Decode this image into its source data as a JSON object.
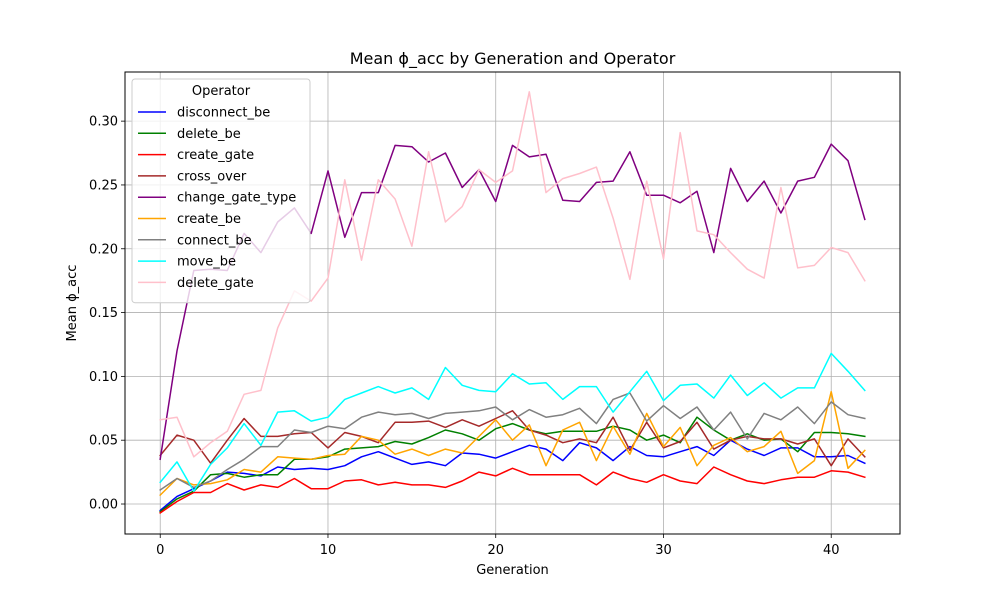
{
  "chart_data": {
    "type": "line",
    "title": "Mean ϕ_acc by Generation and Operator",
    "xlabel": "Generation",
    "ylabel": "Mean ϕ_acc",
    "xlim": [
      -2.1,
      44.1
    ],
    "ylim": [
      -0.0235,
      0.3385
    ],
    "xticks": [
      0,
      10,
      20,
      30,
      40
    ],
    "xtick_labels": [
      "0",
      "10",
      "20",
      "30",
      "40"
    ],
    "yticks": [
      0.0,
      0.05,
      0.1,
      0.15,
      0.2,
      0.25,
      0.3
    ],
    "ytick_labels": [
      "0.00",
      "0.05",
      "0.10",
      "0.15",
      "0.20",
      "0.25",
      "0.30"
    ],
    "grid": true,
    "legend": {
      "title": "Operator",
      "placement": "upper-left"
    },
    "x": [
      0,
      1,
      2,
      3,
      4,
      5,
      6,
      7,
      8,
      9,
      10,
      11,
      12,
      13,
      14,
      15,
      16,
      17,
      18,
      19,
      20,
      21,
      22,
      23,
      24,
      25,
      26,
      27,
      28,
      29,
      30,
      31,
      32,
      33,
      34,
      35,
      36,
      37,
      38,
      39,
      40,
      41,
      42
    ],
    "series": [
      {
        "name": "disconnect_be",
        "color": "#0000ff",
        "values": [
          -0.005,
          0.006,
          0.012,
          0.018,
          0.025,
          0.024,
          0.022,
          0.029,
          0.027,
          0.028,
          0.027,
          0.03,
          0.037,
          0.041,
          0.036,
          0.031,
          0.033,
          0.03,
          0.04,
          0.039,
          0.036,
          0.041,
          0.046,
          0.043,
          0.034,
          0.048,
          0.044,
          0.034,
          0.045,
          0.038,
          0.037,
          0.041,
          0.045,
          0.038,
          0.05,
          0.043,
          0.038,
          0.044,
          0.044,
          0.037,
          0.037,
          0.038,
          0.032
        ]
      },
      {
        "name": "delete_be",
        "color": "#008000",
        "values": [
          -0.006,
          0.004,
          0.01,
          0.023,
          0.024,
          0.021,
          0.023,
          0.023,
          0.035,
          0.035,
          0.037,
          0.043,
          0.044,
          0.045,
          0.049,
          0.047,
          0.052,
          0.058,
          0.055,
          0.05,
          0.059,
          0.063,
          0.058,
          0.055,
          0.057,
          0.057,
          0.057,
          0.061,
          0.058,
          0.05,
          0.054,
          0.048,
          0.068,
          0.058,
          0.05,
          0.055,
          0.05,
          0.051,
          0.041,
          0.056,
          0.056,
          0.055,
          0.053
        ]
      },
      {
        "name": "create_gate",
        "color": "#ff0000",
        "values": [
          -0.007,
          0.002,
          0.009,
          0.009,
          0.016,
          0.011,
          0.015,
          0.013,
          0.02,
          0.012,
          0.012,
          0.018,
          0.019,
          0.015,
          0.017,
          0.015,
          0.015,
          0.013,
          0.018,
          0.025,
          0.022,
          0.028,
          0.023,
          0.023,
          0.023,
          0.023,
          0.015,
          0.025,
          0.02,
          0.017,
          0.023,
          0.018,
          0.016,
          0.029,
          0.023,
          0.018,
          0.016,
          0.019,
          0.021,
          0.021,
          0.026,
          0.025,
          0.021
        ]
      },
      {
        "name": "cross_over",
        "color": "#a52a2a",
        "values": [
          0.038,
          0.054,
          0.05,
          0.032,
          0.05,
          0.067,
          0.053,
          0.053,
          0.055,
          0.056,
          0.044,
          0.056,
          0.053,
          0.048,
          0.064,
          0.064,
          0.065,
          0.06,
          0.066,
          0.061,
          0.067,
          0.073,
          0.058,
          0.054,
          0.048,
          0.051,
          0.048,
          0.068,
          0.042,
          0.064,
          0.044,
          0.049,
          0.064,
          0.043,
          0.05,
          0.053,
          0.051,
          0.051,
          0.047,
          0.051,
          0.03,
          0.051,
          0.037
        ]
      },
      {
        "name": "change_gate_type",
        "color": "#800080",
        "values": [
          0.035,
          0.12,
          0.183,
          0.184,
          0.183,
          0.212,
          0.197,
          0.221,
          0.232,
          0.212,
          0.261,
          0.209,
          0.244,
          0.244,
          0.281,
          0.28,
          0.268,
          0.275,
          0.248,
          0.262,
          0.237,
          0.281,
          0.272,
          0.274,
          0.238,
          0.237,
          0.252,
          0.253,
          0.276,
          0.242,
          0.242,
          0.236,
          0.245,
          0.197,
          0.263,
          0.237,
          0.253,
          0.228,
          0.253,
          0.256,
          0.282,
          0.269,
          0.223
        ]
      },
      {
        "name": "create_be",
        "color": "#ffa500",
        "values": [
          0.007,
          0.02,
          0.015,
          0.016,
          0.019,
          0.027,
          0.025,
          0.037,
          0.036,
          0.035,
          0.038,
          0.039,
          0.053,
          0.05,
          0.039,
          0.043,
          0.038,
          0.043,
          0.04,
          0.053,
          0.066,
          0.05,
          0.062,
          0.03,
          0.058,
          0.064,
          0.034,
          0.061,
          0.039,
          0.071,
          0.045,
          0.06,
          0.03,
          0.046,
          0.052,
          0.041,
          0.045,
          0.057,
          0.024,
          0.034,
          0.088,
          0.028,
          0.042
        ]
      },
      {
        "name": "connect_be",
        "color": "#808080",
        "values": [
          0.011,
          0.02,
          0.013,
          0.018,
          0.027,
          0.035,
          0.045,
          0.045,
          0.058,
          0.056,
          0.061,
          0.059,
          0.068,
          0.072,
          0.07,
          0.071,
          0.067,
          0.071,
          0.072,
          0.073,
          0.076,
          0.066,
          0.074,
          0.068,
          0.07,
          0.075,
          0.063,
          0.082,
          0.087,
          0.065,
          0.077,
          0.067,
          0.076,
          0.058,
          0.072,
          0.051,
          0.071,
          0.066,
          0.076,
          0.063,
          0.08,
          0.07,
          0.067
        ]
      },
      {
        "name": "move_be",
        "color": "#00ffff",
        "values": [
          0.017,
          0.033,
          0.01,
          0.031,
          0.044,
          0.063,
          0.046,
          0.072,
          0.073,
          0.065,
          0.068,
          0.082,
          0.087,
          0.092,
          0.087,
          0.091,
          0.082,
          0.107,
          0.093,
          0.089,
          0.088,
          0.102,
          0.094,
          0.095,
          0.082,
          0.092,
          0.092,
          0.072,
          0.088,
          0.104,
          0.081,
          0.093,
          0.094,
          0.083,
          0.101,
          0.085,
          0.095,
          0.083,
          0.091,
          0.091,
          0.118,
          0.104,
          0.089
        ]
      },
      {
        "name": "delete_gate",
        "color": "#ffc0cb",
        "values": [
          0.066,
          0.068,
          0.037,
          0.048,
          0.057,
          0.086,
          0.089,
          0.138,
          0.167,
          0.159,
          0.177,
          0.254,
          0.191,
          0.254,
          0.239,
          0.202,
          0.276,
          0.221,
          0.233,
          0.262,
          0.252,
          0.261,
          0.323,
          0.244,
          0.255,
          0.259,
          0.264,
          0.224,
          0.176,
          0.253,
          0.192,
          0.291,
          0.214,
          0.211,
          0.197,
          0.184,
          0.177,
          0.248,
          0.185,
          0.187,
          0.201,
          0.197,
          0.175
        ]
      }
    ]
  }
}
